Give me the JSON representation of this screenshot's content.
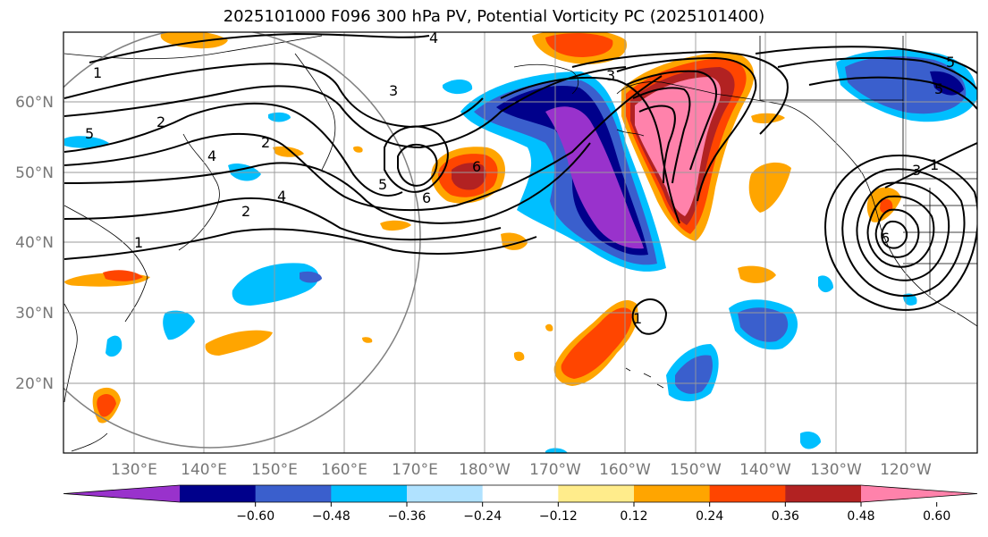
{
  "title": "2025101000 F096 300 hPa PV, Potential Vorticity PC (2025101400)",
  "map": {
    "lat_labels": [
      "60°N",
      "50°N",
      "40°N",
      "30°N",
      "20°N"
    ],
    "lon_labels": [
      "130°E",
      "140°E",
      "150°E",
      "160°E",
      "170°E",
      "180°W",
      "170°W",
      "160°W",
      "150°W",
      "140°W",
      "130°W",
      "120°W"
    ],
    "contour_labels": [
      "1",
      "2",
      "3",
      "4",
      "5",
      "6",
      "2",
      "1",
      "5",
      "6",
      "1",
      "2",
      "3",
      "4",
      "5",
      "6",
      "3",
      "4",
      "5",
      "1"
    ]
  },
  "colorbar": {
    "ticks": [
      "−0.60",
      "−0.48",
      "−0.36",
      "−0.24",
      "−0.12",
      "0.12",
      "0.24",
      "0.36",
      "0.48",
      "0.60"
    ],
    "colors": [
      "#9932cc",
      "#00008b",
      "#3a5fcd",
      "#00bfff",
      "#b0e2ff",
      "#ffffff",
      "#ffec8b",
      "#ffa500",
      "#ff4500",
      "#b22222",
      "#ff82ab"
    ]
  }
}
